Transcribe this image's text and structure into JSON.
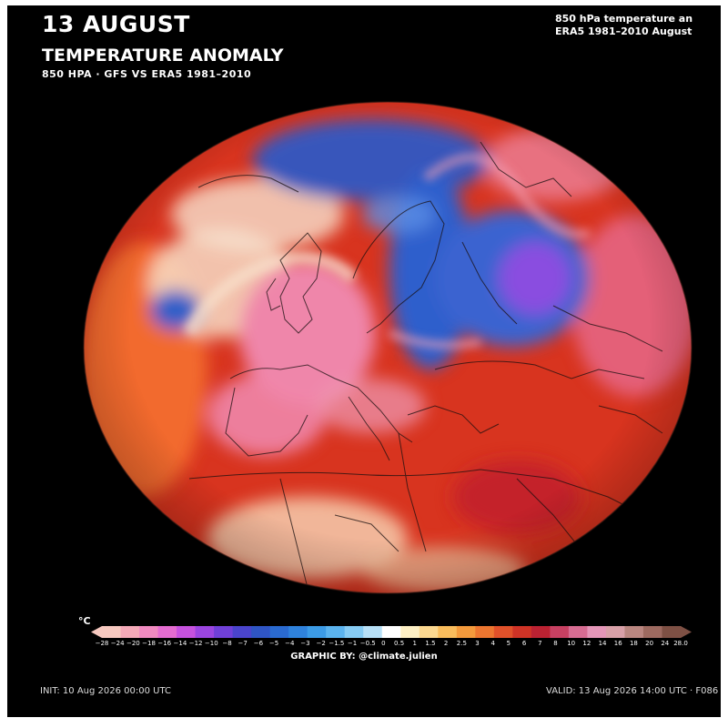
{
  "header": {
    "date": "13 AUGUST",
    "title": "TEMPERATURE ANOMALY",
    "subtitle": "850 HPA · GFS VS ERA5 1981–2010",
    "desc_line1": "850 hPa temperature an",
    "desc_line2": "ERA5 1981–2010 August"
  },
  "colorbar": {
    "unit": "°C",
    "ticks": [
      "−28",
      "−24",
      "−20",
      "−18",
      "−16",
      "−14",
      "−12",
      "−10",
      "−8",
      "−7",
      "−6",
      "−5",
      "−4",
      "−3",
      "−2",
      "−1.5",
      "−1",
      "−0.5",
      "0",
      "0.5",
      "1",
      "1.5",
      "2",
      "2.5",
      "3",
      "4",
      "5",
      "6",
      "7",
      "8",
      "10",
      "12",
      "14",
      "16",
      "18",
      "20",
      "24",
      "28.0"
    ],
    "colors": [
      "#f7c9c0",
      "#f4a9b8",
      "#f08ac0",
      "#e46cd0",
      "#c652de",
      "#9b45e0",
      "#7040d8",
      "#4a44cc",
      "#2f55c4",
      "#2a6ad0",
      "#2f82dc",
      "#3c9be6",
      "#5bb3ee",
      "#86cbf3",
      "#b7e0f7",
      "#ffffff",
      "#fdefc4",
      "#fbd890",
      "#f8bc5c",
      "#f39a3c",
      "#ec7630",
      "#e0512a",
      "#cf3326",
      "#bb2232",
      "#c74062",
      "#d66c92",
      "#e496b8",
      "#d8a0a8",
      "#b98680",
      "#9d6a60",
      "#7e5044"
    ]
  },
  "footer": {
    "credit": "GRAPHIC BY: @climate.julien",
    "init": "INIT: 10 Aug 2026 00:00 UTC",
    "valid": "VALID: 13 Aug 2026 14:00 UTC  ·  F086"
  },
  "map_colors": {
    "base": "#d8341f",
    "warm_pink": "#ef86aa",
    "cool_blue": "#2e58c4",
    "cold_purple": "#8a4ee0",
    "pale": "#f8e3cf"
  }
}
